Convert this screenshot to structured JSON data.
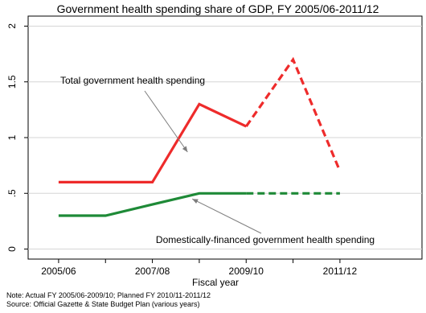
{
  "chart_data": {
    "type": "line",
    "title": "Government health spending share of GDP, FY 2005/06-2011/12",
    "xlabel": "Fiscal year",
    "ylabel": "",
    "x": [
      1,
      2,
      3,
      4,
      5,
      6,
      7
    ],
    "xticks": [
      {
        "x": 1,
        "label": "2005/06"
      },
      {
        "x": 3,
        "label": "2007/08"
      },
      {
        "x": 5,
        "label": "2009/10"
      },
      {
        "x": 7,
        "label": "2011/12"
      }
    ],
    "yticks": [
      {
        "y": 0,
        "label": "0"
      },
      {
        "y": 0.5,
        "label": ".5"
      },
      {
        "y": 1,
        "label": "1"
      },
      {
        "y": 1.5,
        "label": "1.5"
      },
      {
        "y": 2,
        "label": "2"
      }
    ],
    "xlim": [
      0.35,
      8.75
    ],
    "ylim": [
      -0.09,
      2.09
    ],
    "grid": "horizontal",
    "series": [
      {
        "label": "Total government health spending",
        "color": "#ee2b2b",
        "values": [
          0.6,
          0.6,
          0.6,
          1.3,
          1.1,
          1.7,
          0.7
        ],
        "actual_through_index": 4
      },
      {
        "label": "Domestically-financed government health spending",
        "color": "#1e8a37",
        "values": [
          0.3,
          0.3,
          0.4,
          0.5,
          0.5,
          0.5,
          0.5
        ],
        "actual_through_index": 4
      }
    ],
    "annotations": [
      {
        "text": "Total government health spending",
        "series": 0,
        "point_x": 3.75,
        "point_y": 0.87
      },
      {
        "text": "Domestically-financed government health spending",
        "series": 1,
        "point_x": 3.85,
        "point_y": 0.45
      }
    ],
    "notes": [
      "Note: Actual FY 2005/06-2009/10; Planned FY 2010/11-2011/12",
      "Source: Official Gazette & State Budget Plan (various years)"
    ]
  }
}
